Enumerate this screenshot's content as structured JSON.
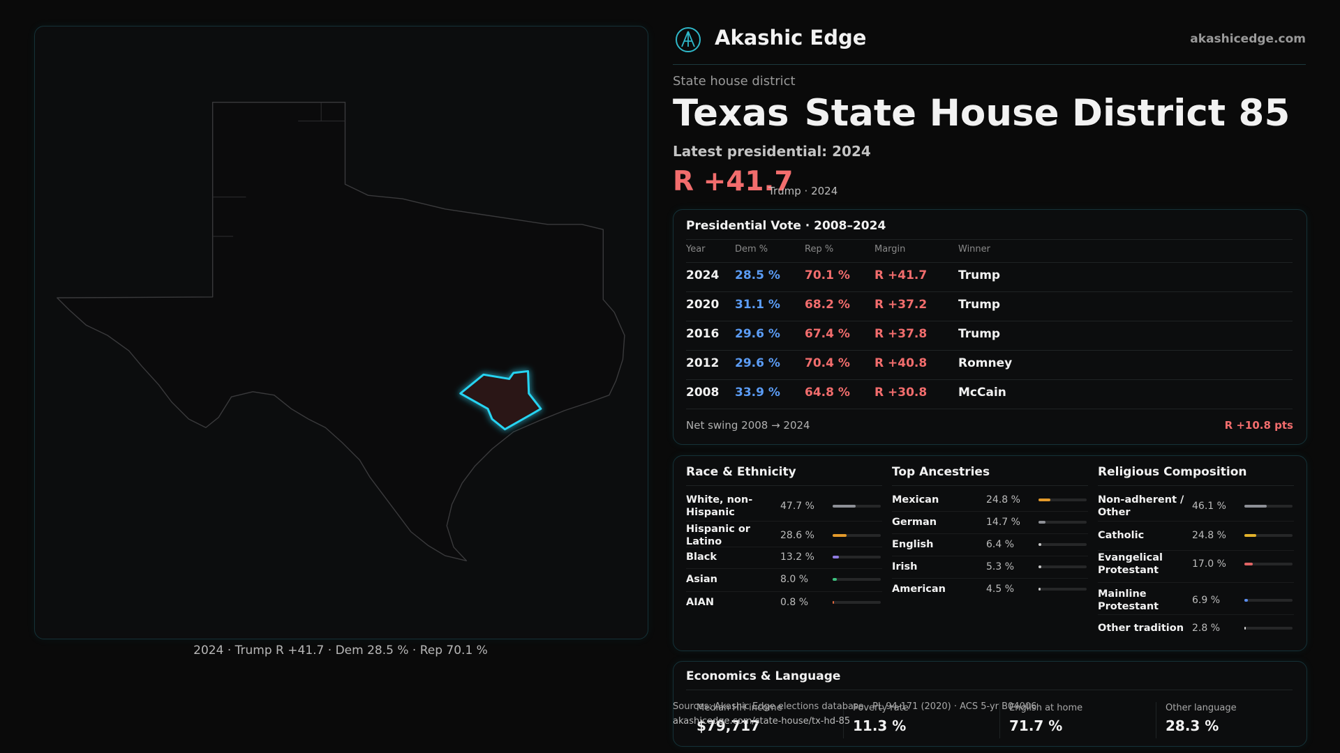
{
  "brand": {
    "name": "Akashic Edge",
    "site": "akashicedge.com"
  },
  "header": {
    "kicker": "State house district",
    "state": "Texas",
    "title": "State House District 85",
    "latest": "Latest presidential: 2024",
    "margin": "R +41.7",
    "margin_note": "Trump · 2024"
  },
  "map": {
    "caption": "2024 · Trump R +41.7 · Dem 28.5 % · Rep 70.1 %"
  },
  "presidential": {
    "title": "Presidential Vote · 2008–2024",
    "columns": [
      "Year",
      "Dem %",
      "Rep %",
      "Margin",
      "Winner"
    ],
    "rows": [
      [
        "2024",
        "28.5 %",
        "70.1 %",
        "R +41.7",
        "Trump"
      ],
      [
        "2020",
        "31.1 %",
        "68.2 %",
        "R +37.2",
        "Trump"
      ],
      [
        "2016",
        "29.6 %",
        "67.4 %",
        "R +37.8",
        "Trump"
      ],
      [
        "2012",
        "29.6 %",
        "70.4 %",
        "R +40.8",
        "Romney"
      ],
      [
        "2008",
        "33.9 %",
        "64.8 %",
        "R +30.8",
        "McCain"
      ]
    ],
    "swing_label": "Net swing 2008 → 2024",
    "swing_value": "R +10.8 pts"
  },
  "demographics": [
    {
      "title": "Race & Ethnicity",
      "xlim": [
        0,
        100
      ],
      "rows": [
        {
          "label": "White, non-Hispanic",
          "value": 47.7,
          "value_label": "47.7 %",
          "color": "#8e9096"
        },
        {
          "label": "Hispanic or Latino",
          "value": 28.6,
          "value_label": "28.6 %",
          "color": "#e39a2b"
        },
        {
          "label": "Black",
          "value": 13.2,
          "value_label": "13.2 %",
          "color": "#8f7be0"
        },
        {
          "label": "Asian",
          "value": 8.0,
          "value_label": "8.0 %",
          "color": "#3cc07e"
        },
        {
          "label": "AIAN",
          "value": 0.8,
          "value_label": "0.8 %",
          "color": "#e0663c"
        }
      ]
    },
    {
      "title": "Top Ancestries",
      "xlim": [
        0,
        100
      ],
      "rows": [
        {
          "label": "Mexican",
          "value": 24.8,
          "value_label": "24.8 %",
          "color": "#e39a2b"
        },
        {
          "label": "German",
          "value": 14.7,
          "value_label": "14.7 %",
          "color": "#8e9096"
        },
        {
          "label": "English",
          "value": 6.4,
          "value_label": "6.4 %",
          "color": "#c8c8c8"
        },
        {
          "label": "Irish",
          "value": 5.3,
          "value_label": "5.3 %",
          "color": "#c8c8c8"
        },
        {
          "label": "American",
          "value": 4.5,
          "value_label": "4.5 %",
          "color": "#c8c8c8"
        }
      ]
    },
    {
      "title": "Religious Composition",
      "xlim": [
        0,
        100
      ],
      "rows": [
        {
          "label": "Non-adherent / Other",
          "value": 46.1,
          "value_label": "46.1 %",
          "color": "#8e9096"
        },
        {
          "label": "Catholic",
          "value": 24.8,
          "value_label": "24.8 %",
          "color": "#e3b22b"
        },
        {
          "label": "Evangelical Protestant",
          "value": 17.0,
          "value_label": "17.0 %",
          "color": "#e06464"
        },
        {
          "label": "Mainline Protestant",
          "value": 6.9,
          "value_label": "6.9 %",
          "color": "#5b8ef0"
        },
        {
          "label": "Other tradition",
          "value": 2.8,
          "value_label": "2.8 %",
          "color": "#d8d8d8"
        }
      ]
    }
  ],
  "economics": {
    "title": "Economics & Language",
    "stats": [
      {
        "label": "Median HH income",
        "value": "$79,717"
      },
      {
        "label": "Poverty rate",
        "value": "11.3 %"
      },
      {
        "label": "English at home",
        "value": "71.7 %"
      },
      {
        "label": "Other language",
        "value": "28.3 %"
      }
    ]
  },
  "footer": {
    "sources": "Sources: Akashic Edge elections database · PL 94-171 (2020) · ACS 5-yr B04006",
    "url": "akashicedge.com/state-house/tx-hd-85"
  }
}
